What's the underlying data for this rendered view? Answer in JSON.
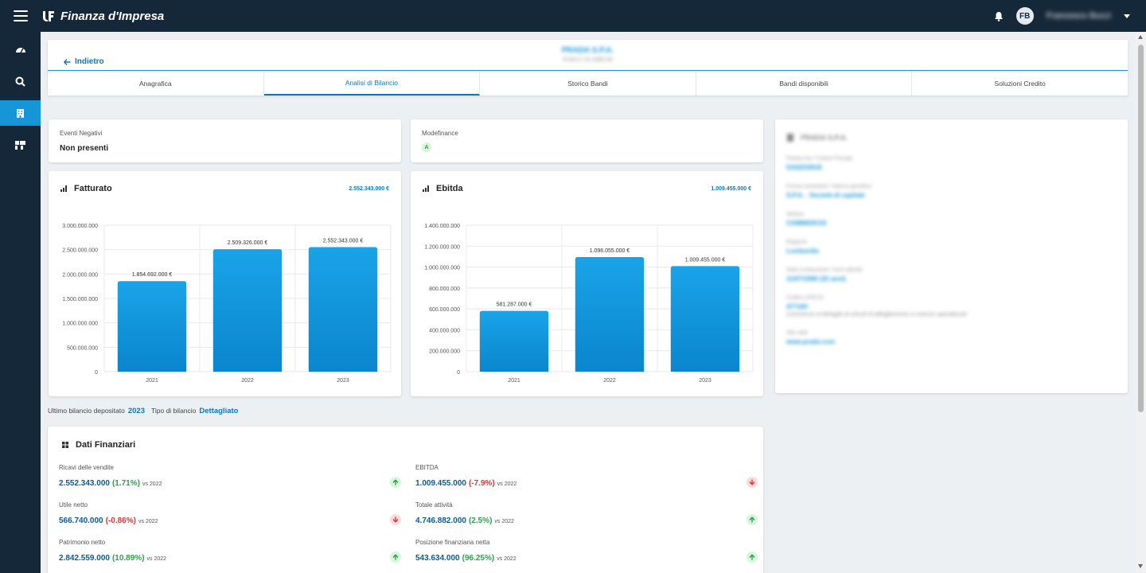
{
  "app": {
    "title": "Finanza d'Impresa",
    "user_initials": "FB",
    "user_name": "Francesco Bucci"
  },
  "sidebar": {
    "items": [
      {
        "icon": "gauge-icon"
      },
      {
        "icon": "search-icon"
      },
      {
        "icon": "building-icon",
        "active": true
      },
      {
        "icon": "puzzle-icon"
      }
    ]
  },
  "header": {
    "back_label": "Indietro",
    "company_name": "PRADA S.P.A.",
    "company_sub": "P.IVA 0 / 01 0000 00"
  },
  "tabs": [
    {
      "label": "Anagrafica"
    },
    {
      "label": "Analisi di Bilancio",
      "active": true
    },
    {
      "label": "Storico Bandi"
    },
    {
      "label": "Bandi disponibili"
    },
    {
      "label": "Soluzioni Credito"
    }
  ],
  "eventi": {
    "label": "Eventi Negativi",
    "value": "Non presenti"
  },
  "modefinance": {
    "label": "Modefinance",
    "rating": "A"
  },
  "fatturato": {
    "title": "Fatturato",
    "total": "2.552.343.000 €"
  },
  "ebitda": {
    "title": "Ebitda",
    "total": "1.009.455.000 €"
  },
  "chart_data": [
    {
      "type": "bar",
      "title": "Fatturato",
      "categories": [
        "2021",
        "2022",
        "2023"
      ],
      "values": [
        1854692000,
        2509326000,
        2552343000
      ],
      "data_labels": [
        "1.854.692.000 €",
        "2.509.326.000 €",
        "2.552.343.000 €"
      ],
      "yticks": [
        0,
        500000000,
        1000000000,
        1500000000,
        2000000000,
        2500000000,
        3000000000
      ],
      "ytick_labels": [
        "0",
        "500.000.000",
        "1.000.000.000",
        "1.500.000.000",
        "2.000.000.000",
        "2.500.000.000",
        "3.000.000.000"
      ],
      "ylim": [
        0,
        3000000000
      ],
      "color": "#0a86cd"
    },
    {
      "type": "bar",
      "title": "Ebitda",
      "categories": [
        "2021",
        "2022",
        "2023"
      ],
      "values": [
        581287000,
        1096055000,
        1009455000
      ],
      "data_labels": [
        "581.287.000 €",
        "1.096.055.000 €",
        "1.009.455.000 €"
      ],
      "yticks": [
        0,
        200000000,
        400000000,
        600000000,
        800000000,
        1000000000,
        1200000000,
        1400000000
      ],
      "ytick_labels": [
        "0",
        "200.000.000",
        "400.000.000",
        "600.000.000",
        "800.000.000",
        "1.000.000.000",
        "1.200.000.000",
        "1.400.000.000"
      ],
      "ylim": [
        0,
        1400000000
      ],
      "color": "#0a86cd"
    }
  ],
  "company_info": {
    "title": "PRADA S.P.A.",
    "fields": [
      {
        "label": "Partita Iva / Codice Fiscale",
        "value": "0103233018"
      },
      {
        "label": "Forma societaria / Natura giuridica",
        "value": "S.P.A. - Società di capitale"
      },
      {
        "label": "Settore",
        "value": "COMMERCIO"
      },
      {
        "label": "Regione",
        "value": "Lombardia"
      },
      {
        "label": "Data costituzione / Anni attività",
        "value": "11/07/1990 (33 anni)"
      },
      {
        "label": "Codice ATECO",
        "value": "477100",
        "desc": "Commercio al dettaglio di articoli di abbigliamento in esercizi specializzati"
      },
      {
        "label": "Sito web",
        "value": "www.prada.com"
      }
    ]
  },
  "ultimo_bilancio": {
    "label": "Ultimo bilancio depositato",
    "year": "2023",
    "tipo_label": "Tipo di bilancio",
    "tipo_value": "Dettagliato"
  },
  "dati_finanziari": {
    "title": "Dati Finanziari",
    "items": [
      {
        "label": "Ricavi delle vendite",
        "value": "2.552.343.000",
        "pct": "(1.71%)",
        "vs": "vs 2022",
        "trend": "up"
      },
      {
        "label": "EBITDA",
        "value": "1.009.455.000",
        "pct": "(-7.9%)",
        "vs": "vs 2022",
        "trend": "down"
      },
      {
        "label": "Utile netto",
        "value": "566.740.000",
        "pct": "(-0.86%)",
        "vs": "vs 2022",
        "trend": "down"
      },
      {
        "label": "Totale attività",
        "value": "4.746.882.000",
        "pct": "(2.5%)",
        "vs": "vs 2022",
        "trend": "up"
      },
      {
        "label": "Patrimonio netto",
        "value": "2.842.559.000",
        "pct": "(10.89%)",
        "vs": "vs 2022",
        "trend": "up"
      },
      {
        "label": "Posizione finanziaria netta",
        "value": "543.634.000",
        "pct": "(96.25%)",
        "vs": "vs 2022",
        "trend": "up"
      }
    ]
  }
}
